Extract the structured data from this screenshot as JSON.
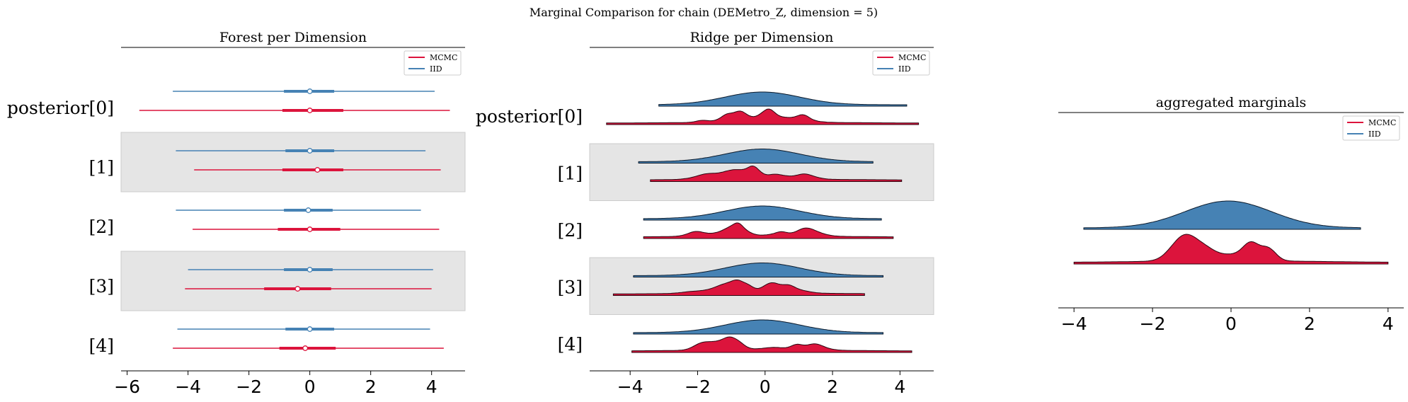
{
  "suptitle": "Marginal Comparison for chain (DEMetro_Z, dimension = 5)",
  "colors": {
    "mcmc": "#dc143c",
    "iid": "#4682b4",
    "band": "#e5e5e5"
  },
  "chart_data": [
    {
      "type": "forest",
      "title": "Forest per Dimension",
      "row_labels": [
        "posterior[0]",
        "[1]",
        "[2]",
        "[3]",
        "[4]"
      ],
      "xlim": [
        -6.2,
        5.1
      ],
      "xticks": [
        -6,
        -4,
        -2,
        0,
        2,
        4
      ],
      "xtick_labels": [
        "−6",
        "−4",
        "−2",
        "0",
        "2",
        "4"
      ],
      "legend": {
        "position": "top-right",
        "entries": [
          "MCMC",
          "IID"
        ]
      },
      "series": [
        {
          "name": "IID",
          "color": "#4682b4",
          "rows": [
            {
              "low": -4.5,
              "q25": -0.85,
              "median": 0.0,
              "q75": 0.8,
              "high": 4.1
            },
            {
              "low": -4.4,
              "q25": -0.8,
              "median": 0.0,
              "q75": 0.8,
              "high": 3.8
            },
            {
              "low": -4.4,
              "q25": -0.85,
              "median": -0.05,
              "q75": 0.75,
              "high": 3.65
            },
            {
              "low": -4.0,
              "q25": -0.85,
              "median": 0.0,
              "q75": 0.75,
              "high": 4.05
            },
            {
              "low": -4.35,
              "q25": -0.8,
              "median": 0.0,
              "q75": 0.8,
              "high": 3.95
            }
          ]
        },
        {
          "name": "MCMC",
          "color": "#dc143c",
          "rows": [
            {
              "low": -5.6,
              "q25": -0.9,
              "median": 0.0,
              "q75": 1.1,
              "high": 4.6
            },
            {
              "low": -3.8,
              "q25": -0.9,
              "median": 0.25,
              "q75": 1.1,
              "high": 4.3
            },
            {
              "low": -3.85,
              "q25": -1.05,
              "median": 0.0,
              "q75": 1.0,
              "high": 4.25
            },
            {
              "low": -4.1,
              "q25": -1.5,
              "median": -0.4,
              "q75": 0.7,
              "high": 4.0
            },
            {
              "low": -4.5,
              "q25": -1.0,
              "median": -0.15,
              "q75": 0.85,
              "high": 4.4
            }
          ]
        }
      ]
    },
    {
      "type": "ridge",
      "title": "Ridge per Dimension",
      "row_labels": [
        "posterior[0]",
        "[1]",
        "[2]",
        "[3]",
        "[4]"
      ],
      "xlim": [
        -5.2,
        5.0
      ],
      "xticks": [
        -4,
        -2,
        0,
        2,
        4
      ],
      "xtick_labels": [
        "−4",
        "−2",
        "0",
        "2",
        "4"
      ],
      "legend": {
        "position": "top-right",
        "entries": [
          "MCMC",
          "IID"
        ]
      },
      "series": [
        {
          "name": "IID",
          "color": "#4682b4",
          "ranges": [
            [
              -3.15,
              4.2
            ],
            [
              -3.75,
              3.2
            ],
            [
              -3.6,
              3.45
            ],
            [
              -3.9,
              3.5
            ],
            [
              -3.9,
              3.5
            ]
          ]
        },
        {
          "name": "MCMC",
          "color": "#dc143c",
          "ranges": [
            [
              -4.7,
              4.55
            ],
            [
              -3.4,
              4.05
            ],
            [
              -3.6,
              3.8
            ],
            [
              -4.5,
              2.95
            ],
            [
              -3.95,
              4.35
            ]
          ]
        }
      ]
    },
    {
      "type": "ridge",
      "title": "aggregated marginals",
      "xlim": [
        -4.4,
        4.4
      ],
      "xticks": [
        -4,
        -2,
        0,
        2,
        4
      ],
      "xtick_labels": [
        "−4",
        "−2",
        "0",
        "2",
        "4"
      ],
      "legend": {
        "position": "top-right",
        "entries": [
          "MCMC",
          "IID"
        ]
      },
      "series": [
        {
          "name": "IID",
          "color": "#4682b4",
          "range": [
            -3.75,
            3.3
          ]
        },
        {
          "name": "MCMC",
          "color": "#dc143c",
          "range": [
            -4.0,
            4.0
          ]
        }
      ]
    }
  ]
}
